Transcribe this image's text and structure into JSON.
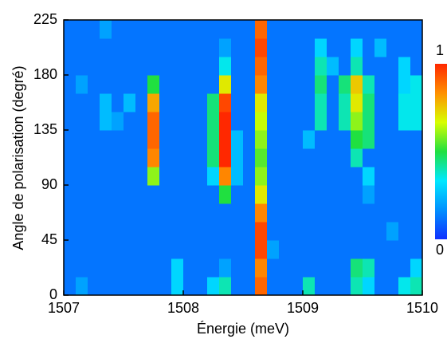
{
  "chart_data": {
    "type": "heatmap",
    "xlabel": "Énergie (meV)",
    "ylabel": "Angle de polarisation (degré)",
    "xlim": [
      1507,
      1510
    ],
    "xticks": [
      1507,
      1508,
      1509,
      1510
    ],
    "ylim": [
      0,
      225
    ],
    "yticks": [
      0,
      45,
      90,
      135,
      180,
      225
    ],
    "clim": [
      0,
      1
    ],
    "cticks": [
      0,
      1
    ],
    "colorscale": [
      "#1030ff",
      "#0090ff",
      "#00e8ff",
      "#20e040",
      "#d8ff00",
      "#ff9000",
      "#ff2800"
    ],
    "z": [
      [
        0.12,
        0.2,
        0.12,
        0.12,
        0.12,
        0.12,
        0.12,
        0.12,
        0.12,
        0.3,
        0.12,
        0.12,
        0.3,
        0.4,
        0.12,
        0.12,
        0.9,
        0.12,
        0.12,
        0.12,
        0.4,
        0.12,
        0.12,
        0.12,
        0.4,
        0.3,
        0.12,
        0.12,
        0.35,
        0.4
      ],
      [
        0.12,
        0.12,
        0.12,
        0.12,
        0.12,
        0.12,
        0.12,
        0.12,
        0.12,
        0.3,
        0.12,
        0.12,
        0.12,
        0.2,
        0.12,
        0.12,
        0.85,
        0.12,
        0.12,
        0.12,
        0.12,
        0.12,
        0.12,
        0.12,
        0.45,
        0.4,
        0.12,
        0.12,
        0.12,
        0.3
      ],
      [
        0.12,
        0.12,
        0.12,
        0.12,
        0.12,
        0.12,
        0.12,
        0.12,
        0.12,
        0.12,
        0.12,
        0.12,
        0.12,
        0.12,
        0.12,
        0.12,
        0.95,
        0.2,
        0.12,
        0.12,
        0.12,
        0.12,
        0.12,
        0.12,
        0.12,
        0.12,
        0.12,
        0.12,
        0.12,
        0.12
      ],
      [
        0.12,
        0.12,
        0.12,
        0.12,
        0.12,
        0.12,
        0.12,
        0.12,
        0.12,
        0.12,
        0.12,
        0.12,
        0.12,
        0.12,
        0.12,
        0.12,
        0.95,
        0.12,
        0.12,
        0.12,
        0.12,
        0.12,
        0.12,
        0.12,
        0.12,
        0.12,
        0.12,
        0.2,
        0.12,
        0.12
      ],
      [
        0.12,
        0.12,
        0.12,
        0.12,
        0.12,
        0.12,
        0.12,
        0.12,
        0.12,
        0.12,
        0.12,
        0.12,
        0.12,
        0.12,
        0.12,
        0.12,
        0.85,
        0.12,
        0.12,
        0.12,
        0.12,
        0.12,
        0.12,
        0.12,
        0.12,
        0.12,
        0.12,
        0.12,
        0.12,
        0.12
      ],
      [
        0.12,
        0.12,
        0.12,
        0.12,
        0.12,
        0.12,
        0.12,
        0.12,
        0.12,
        0.12,
        0.12,
        0.12,
        0.12,
        0.5,
        0.12,
        0.12,
        0.7,
        0.12,
        0.12,
        0.12,
        0.12,
        0.12,
        0.12,
        0.12,
        0.12,
        0.2,
        0.12,
        0.12,
        0.12,
        0.12
      ],
      [
        0.12,
        0.12,
        0.12,
        0.12,
        0.12,
        0.12,
        0.12,
        0.6,
        0.12,
        0.12,
        0.12,
        0.12,
        0.3,
        0.85,
        0.25,
        0.12,
        0.6,
        0.12,
        0.12,
        0.12,
        0.12,
        0.12,
        0.12,
        0.12,
        0.12,
        0.3,
        0.12,
        0.12,
        0.12,
        0.12
      ],
      [
        0.12,
        0.12,
        0.12,
        0.12,
        0.12,
        0.12,
        0.12,
        0.85,
        0.12,
        0.12,
        0.12,
        0.12,
        0.45,
        1,
        0.25,
        0.12,
        0.55,
        0.12,
        0.12,
        0.12,
        0.12,
        0.12,
        0.12,
        0.12,
        0.4,
        0.12,
        0.12,
        0.12,
        0.12,
        0.12
      ],
      [
        0.12,
        0.12,
        0.12,
        0.12,
        0.12,
        0.12,
        0.12,
        0.9,
        0.12,
        0.12,
        0.12,
        0.12,
        0.45,
        1,
        0.25,
        0.12,
        0.6,
        0.12,
        0.12,
        0.12,
        0.25,
        0.12,
        0.12,
        0.12,
        0.5,
        0.45,
        0.12,
        0.12,
        0.12,
        0.12
      ],
      [
        0.12,
        0.12,
        0.12,
        0.25,
        0.2,
        0.12,
        0.12,
        0.9,
        0.12,
        0.12,
        0.12,
        0.12,
        0.45,
        1,
        0.12,
        0.12,
        0.65,
        0.12,
        0.12,
        0.12,
        0.12,
        0.4,
        0.12,
        0.4,
        0.6,
        0.45,
        0.12,
        0.12,
        0.35,
        0.35
      ],
      [
        0.12,
        0.12,
        0.12,
        0.25,
        0.12,
        0.25,
        0.12,
        0.8,
        0.12,
        0.12,
        0.12,
        0.12,
        0.45,
        0.95,
        0.12,
        0.12,
        0.7,
        0.12,
        0.12,
        0.12,
        0.12,
        0.4,
        0.12,
        0.4,
        0.7,
        0.45,
        0.12,
        0.12,
        0.35,
        0.35
      ],
      [
        0.12,
        0.2,
        0.12,
        0.12,
        0.12,
        0.12,
        0.12,
        0.5,
        0.12,
        0.12,
        0.12,
        0.12,
        0.12,
        0.7,
        0.12,
        0.12,
        0.85,
        0.12,
        0.12,
        0.12,
        0.12,
        0.45,
        0.12,
        0.45,
        0.75,
        0.4,
        0.12,
        0.12,
        0.3,
        0.35
      ],
      [
        0.12,
        0.12,
        0.12,
        0.12,
        0.12,
        0.12,
        0.12,
        0.12,
        0.12,
        0.12,
        0.12,
        0.12,
        0.12,
        0.35,
        0.12,
        0.12,
        0.9,
        0.12,
        0.12,
        0.12,
        0.12,
        0.4,
        0.25,
        0.12,
        0.4,
        0.12,
        0.12,
        0.12,
        0.3,
        0.12
      ],
      [
        0.12,
        0.12,
        0.12,
        0.12,
        0.12,
        0.12,
        0.12,
        0.12,
        0.12,
        0.12,
        0.12,
        0.12,
        0.12,
        0.2,
        0.12,
        0.12,
        0.95,
        0.12,
        0.12,
        0.12,
        0.12,
        0.3,
        0.12,
        0.12,
        0.3,
        0.12,
        0.25,
        0.12,
        0.12,
        0.12
      ],
      [
        0.12,
        0.12,
        0.12,
        0.2,
        0.12,
        0.12,
        0.12,
        0.12,
        0.12,
        0.12,
        0.12,
        0.12,
        0.12,
        0.12,
        0.12,
        0.12,
        0.9,
        0.12,
        0.12,
        0.12,
        0.12,
        0.12,
        0.12,
        0.12,
        0.12,
        0.12,
        0.12,
        0.12,
        0.12,
        0.12
      ]
    ]
  }
}
